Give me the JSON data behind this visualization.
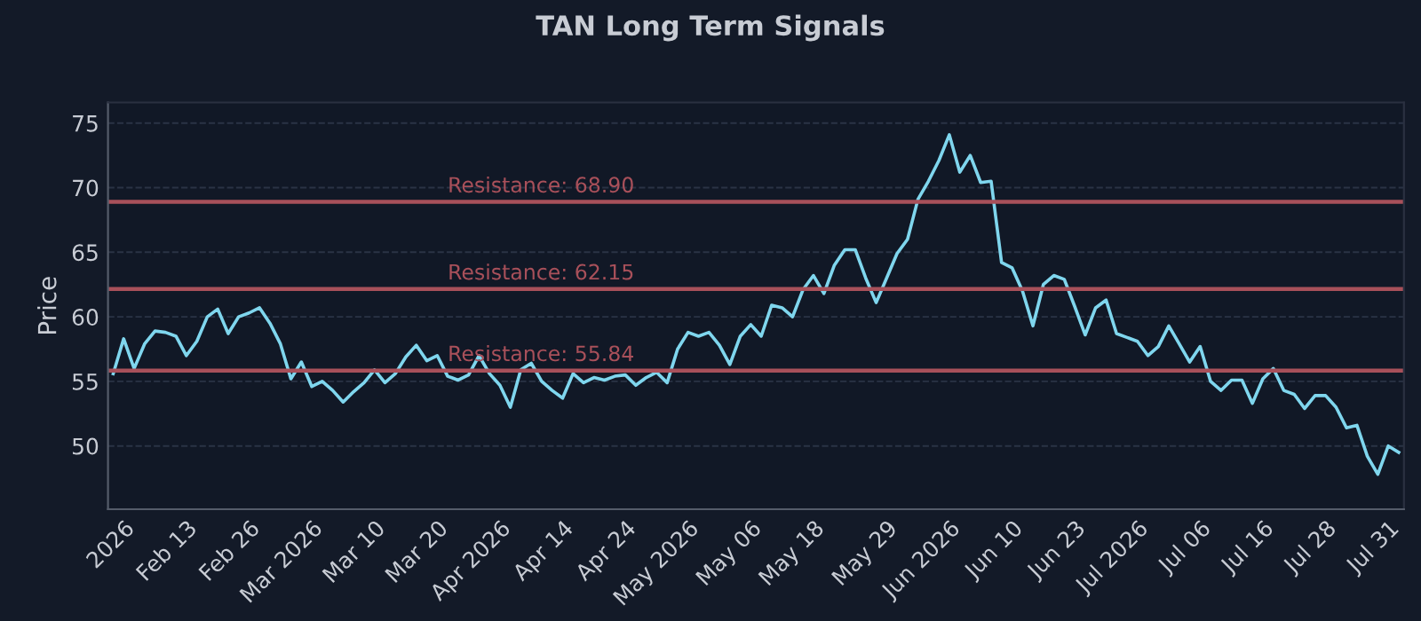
{
  "chart_data": {
    "type": "line",
    "title": "TAN Long Term Signals",
    "ylabel": "Price",
    "categories": [
      null,
      "2026",
      null,
      null,
      null,
      null,
      null,
      "Feb 13",
      null,
      null,
      null,
      null,
      null,
      "Feb 26",
      null,
      null,
      null,
      null,
      null,
      "Mar 2026",
      null,
      null,
      null,
      null,
      null,
      "Mar 10",
      null,
      null,
      null,
      null,
      null,
      "Mar 20",
      null,
      null,
      null,
      null,
      null,
      "Apr 2026",
      null,
      null,
      null,
      null,
      null,
      "Apr 14",
      null,
      null,
      null,
      null,
      null,
      "Apr 24",
      null,
      null,
      null,
      null,
      null,
      "May 2026",
      null,
      null,
      null,
      null,
      null,
      "May 06",
      null,
      null,
      null,
      null,
      null,
      "May 18",
      null,
      null,
      null,
      null,
      null,
      null,
      "May 29",
      null,
      null,
      null,
      null,
      null,
      "Jun 2026",
      null,
      null,
      null,
      null,
      null,
      "Jun 10",
      null,
      null,
      null,
      null,
      null,
      "Jun 23",
      null,
      null,
      null,
      null,
      null,
      "Jul 2026",
      null,
      null,
      null,
      null,
      null,
      "Jul 06",
      null,
      null,
      null,
      null,
      null,
      "Jul 16",
      null,
      null,
      null,
      null,
      null,
      "Jul 28",
      null,
      null,
      null,
      null,
      null,
      "Jul 31",
      null
    ],
    "series": [
      {
        "color": "#7fd6ee",
        "values": [
          55.6,
          58.3,
          56.0,
          57.9,
          58.9,
          58.8,
          58.5,
          57.0,
          58.1,
          60.0,
          60.6,
          58.7,
          60.0,
          60.3,
          60.7,
          59.5,
          57.9,
          55.2,
          56.5,
          54.6,
          55.0,
          54.3,
          53.4,
          54.2,
          54.9,
          55.9,
          54.9,
          55.6,
          56.9,
          57.8,
          56.6,
          57.0,
          55.4,
          55.1,
          55.5,
          57.0,
          55.6,
          54.7,
          53.0,
          55.9,
          56.4,
          55.0,
          54.3,
          53.7,
          55.6,
          54.9,
          55.3,
          55.1,
          55.4,
          55.5,
          54.7,
          55.3,
          55.7,
          54.9,
          57.5,
          58.8,
          58.5,
          58.8,
          57.8,
          56.3,
          58.5,
          59.4,
          58.5,
          60.9,
          60.7,
          60.0,
          62.1,
          63.2,
          61.8,
          64.0,
          65.2,
          65.2,
          63.0,
          61.1,
          63.0,
          64.9,
          66.0,
          69.1,
          70.5,
          72.1,
          74.1,
          71.2,
          72.5,
          70.4,
          70.5,
          64.2,
          63.8,
          62.0,
          59.3,
          62.5,
          63.2,
          62.9,
          60.8,
          58.6,
          60.7,
          61.3,
          58.7,
          58.4,
          58.1,
          57.0,
          57.7,
          59.3,
          57.9,
          56.5,
          57.7,
          55.0,
          54.3,
          55.1,
          55.1,
          53.3,
          55.2,
          56.0,
          54.3,
          54.0,
          52.9,
          53.9,
          53.9,
          53.0,
          51.4,
          51.6,
          49.2,
          47.8,
          50.0,
          49.5
        ]
      }
    ],
    "ylim": [
      45.1,
      76.6
    ],
    "yticks": [
      50,
      55,
      60,
      65,
      70,
      75
    ],
    "ref_lines": [
      {
        "axis": "y",
        "value": 68.9,
        "label": "Resistance: 68.90",
        "color": "#a8505a"
      },
      {
        "axis": "y",
        "value": 62.15,
        "label": "Resistance: 62.15",
        "color": "#a8505a"
      },
      {
        "axis": "y",
        "value": 55.84,
        "label": "Resistance: 55.84",
        "color": "#a8505a"
      }
    ],
    "grid": "y",
    "legend": false
  }
}
